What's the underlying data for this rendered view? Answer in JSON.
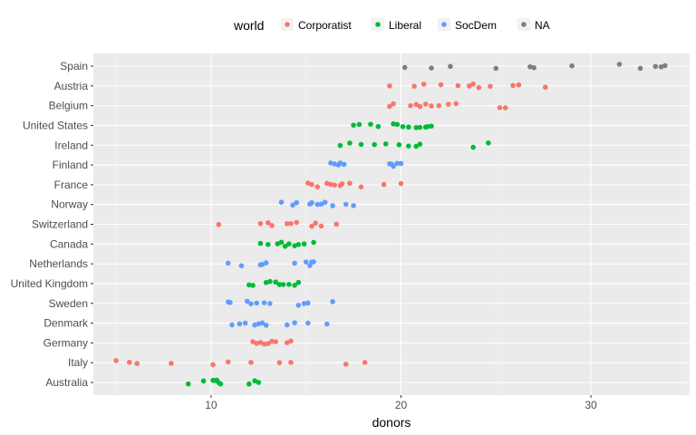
{
  "chart_data": {
    "type": "scatter",
    "title": "",
    "xlabel": "donors",
    "ylabel": "",
    "xlim": [
      3.8,
      35.2
    ],
    "x_ticks": [
      10,
      20,
      30
    ],
    "grid": true,
    "legend_placement": "top",
    "legend": {
      "title": "world",
      "entries": [
        {
          "name": "Corporatist",
          "color": "#F8766D"
        },
        {
          "name": "Liberal",
          "color": "#00BA38"
        },
        {
          "name": "SocDem",
          "color": "#619CFF"
        },
        {
          "name": "NA",
          "color": "#7F7F7F"
        }
      ]
    },
    "categories": [
      "Spain",
      "Austria",
      "Belgium",
      "United States",
      "Ireland",
      "Finland",
      "France",
      "Norway",
      "Switzerland",
      "Canada",
      "Netherlands",
      "United Kingdom",
      "Sweden",
      "Denmark",
      "Germany",
      "Italy",
      "Australia"
    ],
    "series": [
      {
        "name": "Corporatist",
        "color": "#F8766D",
        "points": [
          {
            "country": "Austria",
            "values": [
              19.4,
              20.7,
              21.2,
              22.1,
              23.0,
              23.6,
              23.8,
              24.1,
              24.7,
              25.9,
              26.2,
              27.6
            ]
          },
          {
            "country": "Belgium",
            "values": [
              19.4,
              19.6,
              20.5,
              20.8,
              21.0,
              21.3,
              21.6,
              22.0,
              22.5,
              22.9,
              25.2,
              25.5
            ]
          },
          {
            "country": "France",
            "values": [
              15.1,
              15.3,
              15.6,
              16.1,
              16.3,
              16.5,
              16.8,
              16.9,
              17.3,
              17.9,
              19.1,
              20.0
            ]
          },
          {
            "country": "Switzerland",
            "values": [
              10.4,
              12.6,
              13.0,
              13.2,
              14.0,
              14.2,
              14.5,
              15.3,
              15.5,
              15.8,
              16.6
            ]
          },
          {
            "country": "Germany",
            "values": [
              12.2,
              12.4,
              12.6,
              12.8,
              13.0,
              13.2,
              13.4,
              14.0,
              14.2
            ]
          },
          {
            "country": "Italy",
            "values": [
              5.0,
              5.7,
              6.1,
              7.9,
              10.1,
              10.9,
              12.1,
              13.6,
              14.2,
              17.1,
              18.1
            ]
          }
        ]
      },
      {
        "name": "Liberal",
        "color": "#00BA38",
        "points": [
          {
            "country": "United States",
            "values": [
              17.5,
              17.8,
              18.4,
              18.8,
              19.6,
              19.8,
              20.1,
              20.4,
              20.8,
              21.0,
              21.3,
              21.4,
              21.6
            ]
          },
          {
            "country": "Ireland",
            "values": [
              16.8,
              17.3,
              17.9,
              18.6,
              19.2,
              19.9,
              20.4,
              20.8,
              21.0,
              23.8,
              24.6
            ]
          },
          {
            "country": "Canada",
            "values": [
              12.6,
              13.0,
              13.5,
              13.7,
              13.9,
              14.1,
              14.4,
              14.6,
              14.9,
              15.4
            ]
          },
          {
            "country": "United Kingdom",
            "values": [
              12.0,
              12.2,
              12.9,
              13.1,
              13.4,
              13.6,
              13.8,
              14.1,
              14.4,
              14.6
            ]
          },
          {
            "country": "Australia",
            "values": [
              8.8,
              9.6,
              10.1,
              10.2,
              10.3,
              10.4,
              10.5,
              12.0,
              12.3,
              12.5
            ]
          }
        ]
      },
      {
        "name": "SocDem",
        "color": "#619CFF",
        "points": [
          {
            "country": "Finland",
            "values": [
              16.3,
              16.5,
              16.7,
              16.8,
              17.0,
              19.4,
              19.5,
              19.6,
              19.8,
              20.0
            ]
          },
          {
            "country": "Norway",
            "values": [
              13.7,
              14.3,
              14.5,
              15.2,
              15.3,
              15.6,
              15.8,
              16.0,
              16.4,
              17.1,
              17.5
            ]
          },
          {
            "country": "Netherlands",
            "values": [
              10.9,
              11.6,
              12.6,
              12.7,
              12.9,
              14.4,
              15.0,
              15.2,
              15.3,
              15.4
            ]
          },
          {
            "country": "Sweden",
            "values": [
              10.9,
              11.0,
              11.9,
              12.1,
              12.4,
              12.8,
              13.1,
              14.6,
              14.9,
              15.1,
              16.4
            ]
          },
          {
            "country": "Denmark",
            "values": [
              11.1,
              11.5,
              11.8,
              12.3,
              12.5,
              12.7,
              12.9,
              14.0,
              14.4,
              15.1,
              16.1
            ]
          }
        ]
      },
      {
        "name": "NA",
        "color": "#7F7F7F",
        "points": [
          {
            "country": "Spain",
            "values": [
              20.2,
              21.6,
              22.6,
              25.0,
              26.8,
              27.0,
              29.0,
              31.5,
              32.6,
              33.4,
              33.7,
              33.9
            ]
          }
        ]
      }
    ]
  }
}
